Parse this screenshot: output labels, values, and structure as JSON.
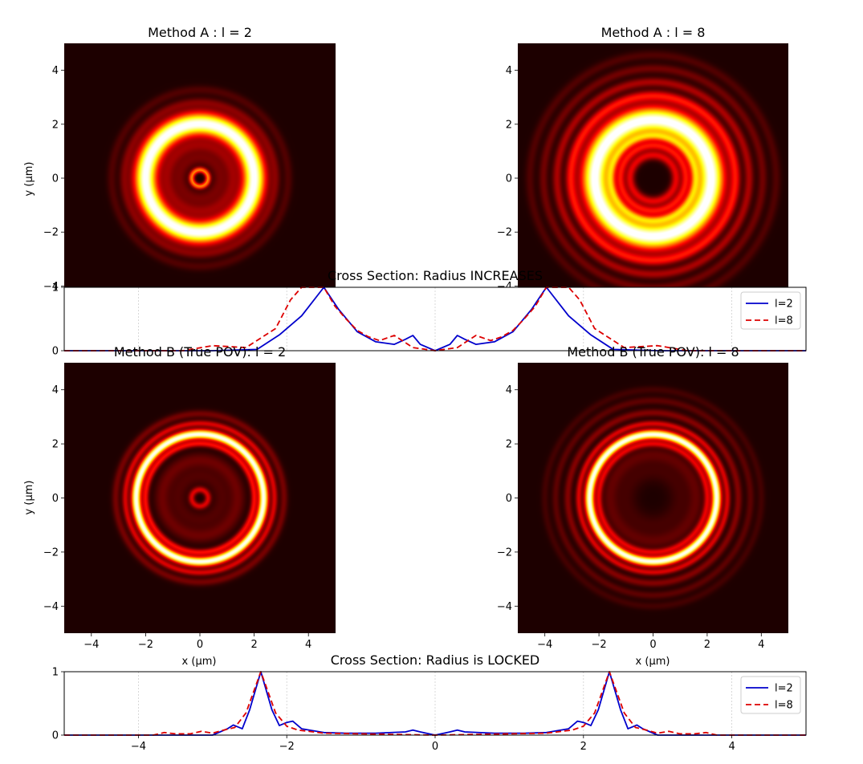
{
  "figure": {
    "xlabel": "x (µm)",
    "ylabel": "y (µm)"
  },
  "chart_data": [
    {
      "type": "heatmap",
      "title": "Method A : l = 2",
      "xlim": [
        -5,
        5
      ],
      "ylim": [
        -5,
        5
      ],
      "xticks": [],
      "yticks": [
        -4,
        -2,
        0,
        2,
        4
      ],
      "colormap": "hot",
      "rings": [
        {
          "r": 0.0,
          "w": 0.18,
          "a": 0.0
        },
        {
          "r": 0.3,
          "w": 0.07,
          "a": 0.55
        },
        {
          "r": 0.75,
          "w": 0.22,
          "a": 0.14
        },
        {
          "r": 1.2,
          "w": 0.16,
          "a": 0.16
        },
        {
          "r": 2.0,
          "w": 0.3,
          "a": 1.0
        },
        {
          "r": 2.8,
          "w": 0.12,
          "a": 0.14
        },
        {
          "r": 3.25,
          "w": 0.12,
          "a": 0.08
        }
      ]
    },
    {
      "type": "heatmap",
      "title": "Method A : l = 8",
      "xlim": [
        -5,
        5
      ],
      "ylim": [
        -5,
        5
      ],
      "xticks": [],
      "yticks": [
        -4,
        -2,
        0,
        2,
        4
      ],
      "colormap": "hot",
      "rings": [
        {
          "r": 0.4,
          "w": 0.12,
          "a": 0.0
        },
        {
          "r": 0.85,
          "w": 0.12,
          "a": 0.32
        },
        {
          "r": 1.2,
          "w": 0.11,
          "a": 0.35
        },
        {
          "r": 1.55,
          "w": 0.12,
          "a": 0.45
        },
        {
          "r": 2.15,
          "w": 0.35,
          "a": 1.0
        },
        {
          "r": 3.05,
          "w": 0.13,
          "a": 0.35
        },
        {
          "r": 3.55,
          "w": 0.12,
          "a": 0.22
        },
        {
          "r": 4.05,
          "w": 0.12,
          "a": 0.13
        },
        {
          "r": 4.55,
          "w": 0.12,
          "a": 0.08
        }
      ]
    },
    {
      "type": "line",
      "title": "Cross Section: Radius INCREASES",
      "xlim": [
        -5,
        5
      ],
      "ylim": [
        0,
        1
      ],
      "xticks": [],
      "yticks": [
        0,
        1
      ],
      "legend": "top-right",
      "series": [
        {
          "name": "l=2",
          "color": "#0000cc",
          "dash": "",
          "x": [
            -5,
            -3,
            -2.4,
            -2.1,
            -1.8,
            -1.5,
            -1.3,
            -1.05,
            -0.8,
            -0.55,
            -0.4,
            -0.3,
            -0.2,
            0,
            0.2,
            0.3,
            0.4,
            0.55,
            0.8,
            1.05,
            1.3,
            1.5,
            1.8,
            2.1,
            2.4,
            3,
            5
          ],
          "y": [
            0,
            0,
            0.02,
            0.25,
            0.55,
            1.0,
            0.65,
            0.3,
            0.14,
            0.1,
            0.18,
            0.24,
            0.1,
            0.0,
            0.1,
            0.24,
            0.18,
            0.1,
            0.14,
            0.3,
            0.65,
            1.0,
            0.55,
            0.25,
            0.02,
            0,
            0
          ]
        },
        {
          "name": "l=8",
          "color": "#dd0000",
          "dash": "7,4",
          "x": [
            -5,
            -3.4,
            -3.0,
            -2.55,
            -2.15,
            -1.95,
            -1.8,
            -1.5,
            -1.35,
            -1.2,
            -1.05,
            -0.9,
            -0.75,
            -0.55,
            -0.3,
            0,
            0.3,
            0.55,
            0.75,
            0.9,
            1.05,
            1.2,
            1.35,
            1.5,
            1.8,
            1.95,
            2.15,
            2.55,
            3.0,
            3.4,
            5
          ],
          "y": [
            0,
            0,
            0.08,
            0.05,
            0.35,
            0.8,
            1.0,
            1.0,
            0.7,
            0.5,
            0.32,
            0.22,
            0.16,
            0.24,
            0.05,
            0.0,
            0.05,
            0.24,
            0.16,
            0.22,
            0.32,
            0.5,
            0.7,
            1.0,
            1.0,
            0.8,
            0.35,
            0.05,
            0.08,
            0,
            0
          ]
        }
      ]
    },
    {
      "type": "heatmap",
      "title": "Method B (True POV): l = 2",
      "xlim": [
        -5,
        5
      ],
      "ylim": [
        -5,
        5
      ],
      "xticks": [
        -4,
        -2,
        0,
        2,
        4
      ],
      "yticks": [
        -4,
        -2,
        0,
        2,
        4
      ],
      "colormap": "hot",
      "rings": [
        {
          "r": 0.0,
          "w": 0.12,
          "a": 0.0
        },
        {
          "r": 0.3,
          "w": 0.08,
          "a": 0.3
        },
        {
          "r": 0.8,
          "w": 0.25,
          "a": 0.08
        },
        {
          "r": 1.4,
          "w": 0.2,
          "a": 0.12
        },
        {
          "r": 2.0,
          "w": 0.08,
          "a": 0.35
        },
        {
          "r": 2.35,
          "w": 0.12,
          "a": 1.0
        },
        {
          "r": 2.75,
          "w": 0.08,
          "a": 0.3
        },
        {
          "r": 3.1,
          "w": 0.1,
          "a": 0.14
        }
      ]
    },
    {
      "type": "heatmap",
      "title": "Method B (True POV): l = 8",
      "xlim": [
        -5,
        5
      ],
      "ylim": [
        -5,
        5
      ],
      "xticks": [
        -4,
        -2,
        0,
        2,
        4
      ],
      "yticks": [
        -4,
        -2,
        0,
        2,
        4
      ],
      "colormap": "hot",
      "rings": [
        {
          "r": 0.0,
          "w": 0.4,
          "a": 0.0
        },
        {
          "r": 1.0,
          "w": 0.3,
          "a": 0.06
        },
        {
          "r": 1.6,
          "w": 0.2,
          "a": 0.1
        },
        {
          "r": 2.0,
          "w": 0.08,
          "a": 0.3
        },
        {
          "r": 2.35,
          "w": 0.12,
          "a": 1.0
        },
        {
          "r": 2.75,
          "w": 0.08,
          "a": 0.3
        },
        {
          "r": 3.15,
          "w": 0.1,
          "a": 0.16
        },
        {
          "r": 3.6,
          "w": 0.1,
          "a": 0.1
        },
        {
          "r": 4.0,
          "w": 0.1,
          "a": 0.06
        }
      ]
    },
    {
      "type": "line",
      "title": "Cross Section: Radius is LOCKED",
      "xlim": [
        -5,
        5
      ],
      "ylim": [
        0,
        1
      ],
      "xticks": [
        -4,
        -2,
        0,
        2,
        4
      ],
      "yticks": [
        0,
        1
      ],
      "legend": "top-right",
      "series": [
        {
          "name": "l=2",
          "color": "#0000cc",
          "dash": "",
          "x": [
            -5,
            -3,
            -2.8,
            -2.72,
            -2.6,
            -2.5,
            -2.35,
            -2.2,
            -2.1,
            -2.0,
            -1.92,
            -1.8,
            -1.5,
            -1.2,
            -0.8,
            -0.4,
            -0.3,
            -0.2,
            0,
            0.2,
            0.3,
            0.4,
            0.8,
            1.2,
            1.5,
            1.8,
            1.92,
            2.0,
            2.1,
            2.2,
            2.35,
            2.5,
            2.6,
            2.72,
            2.8,
            3,
            5
          ],
          "y": [
            0,
            0,
            0.1,
            0.16,
            0.1,
            0.4,
            1.0,
            0.4,
            0.15,
            0.2,
            0.22,
            0.1,
            0.04,
            0.03,
            0.03,
            0.05,
            0.08,
            0.05,
            0.0,
            0.05,
            0.08,
            0.05,
            0.03,
            0.03,
            0.04,
            0.1,
            0.22,
            0.2,
            0.15,
            0.4,
            1.0,
            0.4,
            0.1,
            0.16,
            0.1,
            0,
            0
          ]
        },
        {
          "name": "l=8",
          "color": "#dd0000",
          "dash": "7,4",
          "x": [
            -5,
            -3.8,
            -3.65,
            -3.5,
            -3.3,
            -3.15,
            -3.0,
            -2.85,
            -2.7,
            -2.55,
            -2.35,
            -2.15,
            -2.0,
            -1.85,
            -1.5,
            -1,
            -0.5,
            0,
            0.5,
            1,
            1.5,
            1.85,
            2.0,
            2.15,
            2.35,
            2.55,
            2.7,
            2.85,
            3.0,
            3.15,
            3.3,
            3.5,
            3.65,
            3.8,
            5
          ],
          "y": [
            0,
            0,
            0.04,
            0.02,
            0.02,
            0.06,
            0.03,
            0.08,
            0.12,
            0.35,
            1.0,
            0.35,
            0.14,
            0.08,
            0.03,
            0.02,
            0.01,
            0.0,
            0.01,
            0.02,
            0.03,
            0.08,
            0.14,
            0.35,
            1.0,
            0.35,
            0.12,
            0.08,
            0.03,
            0.06,
            0.02,
            0.02,
            0.04,
            0,
            0
          ]
        }
      ]
    }
  ]
}
